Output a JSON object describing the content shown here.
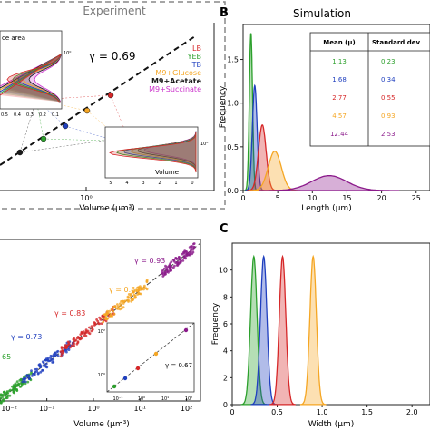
{
  "figure": {
    "panel_a": {
      "title": "Experiment",
      "gamma_label": "γ = 0.69",
      "xlabel": "Volume (μm³)",
      "xtick": "10⁰",
      "inset_left_title": "ce area",
      "inset_left_xticks": [
        "0.5",
        "0.4",
        "0.3",
        "0.2",
        "0.1"
      ],
      "inset_left_ytick": "10⁰",
      "inset_right_title": "Volume",
      "inset_right_xticks": [
        "5",
        "4",
        "3",
        "2",
        "1",
        "0"
      ],
      "inset_right_ytick": "10⁰"
    },
    "panel_b": {
      "letter": "B",
      "title": "Simulation",
      "xlabel": "Length (μm)",
      "ylabel": "Frequency",
      "table": {
        "headers": [
          "Mean (μ)",
          "Standard dev"
        ],
        "rows": [
          {
            "mean": "1.13",
            "sd": "0.23",
            "color": "#2ca02c"
          },
          {
            "mean": "1.68",
            "sd": "0.34",
            "color": "#1f3fbf"
          },
          {
            "mean": "2.77",
            "sd": "0.55",
            "color": "#d62728"
          },
          {
            "mean": "4.57",
            "sd": "0.93",
            "color": "#f5a623"
          },
          {
            "mean": "12.44",
            "sd": "2.53",
            "color": "#8b1a8b"
          }
        ]
      }
    },
    "panel_c": {
      "letter": "C",
      "xlabel": "Width (μm)",
      "ylabel": "Frequency"
    },
    "panel_d": {
      "xlabel": "Volume (μm³)",
      "inset_gamma": "γ = 0.67",
      "inset_xticks": [
        "10⁻¹",
        "10⁰",
        "10¹",
        "10²"
      ],
      "inset_yticks": [
        "10⁰",
        "10²"
      ]
    }
  },
  "chart_data": [
    {
      "type": "area",
      "panel": "A-inset",
      "title": "",
      "legend": [
        {
          "label": "LB",
          "color": "#d62728"
        },
        {
          "label": "YEB",
          "color": "#2ca02c"
        },
        {
          "label": "TB",
          "color": "#1f3fbf"
        },
        {
          "label": "M9+Glucose",
          "color": "#f5a623"
        },
        {
          "label": "M9+Acetate",
          "color": "#1a1a1a"
        },
        {
          "label": "M9+Succinate",
          "color": "#cc33cc"
        }
      ],
      "legend_position": "top-right",
      "markers": [
        {
          "label": "M9+Acetate",
          "x": 0.12,
          "y": 0.03,
          "color": "#1a1a1a"
        },
        {
          "label": "M9+Succinate",
          "x": 0.19,
          "y": 0.07,
          "color": "#2ca02c"
        },
        {
          "label": "TB",
          "x": 0.3,
          "y": 0.13,
          "color": "#1f3fbf"
        },
        {
          "label": "M9+Glucose",
          "x": 0.45,
          "y": 0.23,
          "color": "#f5a623"
        },
        {
          "label": "LB",
          "x": 0.65,
          "y": 0.39,
          "color": "#d62728"
        }
      ],
      "fit": {
        "label": "γ = 0.69",
        "style": "dashed"
      }
    },
    {
      "type": "line",
      "panel": "B",
      "title": "Simulation",
      "xlabel": "Length (μm)",
      "ylabel": "Frequency",
      "xlim": [
        0,
        27
      ],
      "ylim": [
        0,
        1.9
      ],
      "xticks": [
        0,
        5,
        10,
        15,
        20,
        25
      ],
      "yticks": [
        0.0,
        0.5,
        1.0,
        1.5
      ],
      "series": [
        {
          "mean": 1.13,
          "sd": 0.23,
          "peak": 1.8,
          "color": "#2ca02c"
        },
        {
          "mean": 1.68,
          "sd": 0.34,
          "peak": 1.2,
          "color": "#1f3fbf"
        },
        {
          "mean": 2.77,
          "sd": 0.55,
          "peak": 0.75,
          "color": "#d62728"
        },
        {
          "mean": 4.57,
          "sd": 0.93,
          "peak": 0.45,
          "color": "#f5a623"
        },
        {
          "mean": 12.44,
          "sd": 2.53,
          "peak": 0.17,
          "color": "#8b1a8b"
        }
      ]
    },
    {
      "type": "line",
      "panel": "C",
      "title": "",
      "xlabel": "Width (μm)",
      "ylabel": "Frequency",
      "xlim": [
        0,
        2.2
      ],
      "ylim": [
        0,
        12
      ],
      "xticks": [
        0,
        0.5,
        1.0,
        1.5,
        2.0
      ],
      "yticks": [
        0,
        2,
        4,
        6,
        8,
        10
      ],
      "series": [
        {
          "mean": 0.24,
          "sd": 0.036,
          "peak": 11,
          "color": "#2ca02c"
        },
        {
          "mean": 0.35,
          "sd": 0.036,
          "peak": 11,
          "color": "#1f3fbf"
        },
        {
          "mean": 0.56,
          "sd": 0.036,
          "peak": 11,
          "color": "#d62728"
        },
        {
          "mean": 0.9,
          "sd": 0.036,
          "peak": 11,
          "color": "#f5a623"
        }
      ]
    },
    {
      "type": "scatter",
      "panel": "D",
      "title": "",
      "xlabel": "Volume (μm³)",
      "xscale": "log",
      "xlim": [
        0.009,
        200
      ],
      "ylim": [
        0,
        1
      ],
      "xticks": [
        "10⁻²",
        "10⁻¹",
        "10⁰",
        "10¹",
        "10²"
      ],
      "clusters": [
        {
          "label": "65",
          "x0": 0.009,
          "x1": 0.05,
          "color": "#2ca02c"
        },
        {
          "label": "γ = 0.73",
          "x0": 0.03,
          "x1": 0.4,
          "color": "#1f3fbf"
        },
        {
          "label": "γ = 0.83",
          "x0": 0.2,
          "x1": 3,
          "color": "#d62728"
        },
        {
          "label": "γ = 0.89",
          "x0": 1.5,
          "x1": 15,
          "color": "#f5a623"
        },
        {
          "label": "γ = 0.93",
          "x0": 30,
          "x1": 150,
          "color": "#8b1a8b"
        }
      ]
    }
  ]
}
